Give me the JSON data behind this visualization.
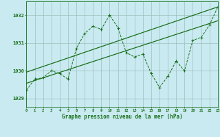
{
  "title": "Graphe pression niveau de la mer (hPa)",
  "bg_color": "#c8eaf0",
  "grid_color": "#9dbfbf",
  "line_color": "#1a6e1a",
  "x_min": 0,
  "x_max": 23,
  "y_min": 1028.7,
  "y_max": 1032.5,
  "y_ticks": [
    1029,
    1030,
    1031,
    1032
  ],
  "x_ticks": [
    0,
    1,
    2,
    3,
    4,
    5,
    6,
    7,
    8,
    9,
    10,
    11,
    12,
    13,
    14,
    15,
    16,
    17,
    18,
    19,
    20,
    21,
    22,
    23
  ],
  "detailed_x": [
    0,
    1,
    2,
    3,
    4,
    5,
    6,
    7,
    8,
    9,
    10,
    11,
    12,
    13,
    14,
    15,
    16,
    17,
    18,
    19,
    20,
    21,
    22,
    23
  ],
  "detailed_y": [
    1029.3,
    1029.7,
    1029.75,
    1030.0,
    1029.9,
    1029.7,
    1030.8,
    1031.35,
    1031.6,
    1031.5,
    1032.0,
    1031.55,
    1030.65,
    1030.5,
    1030.6,
    1029.9,
    1029.4,
    1029.8,
    1030.35,
    1030.0,
    1031.1,
    1031.2,
    1031.65,
    1032.3
  ],
  "trend_x": [
    0,
    23
  ],
  "trend_y": [
    1029.55,
    1031.8
  ],
  "trend2_x": [
    0,
    23
  ],
  "trend2_y": [
    1029.95,
    1032.3
  ]
}
